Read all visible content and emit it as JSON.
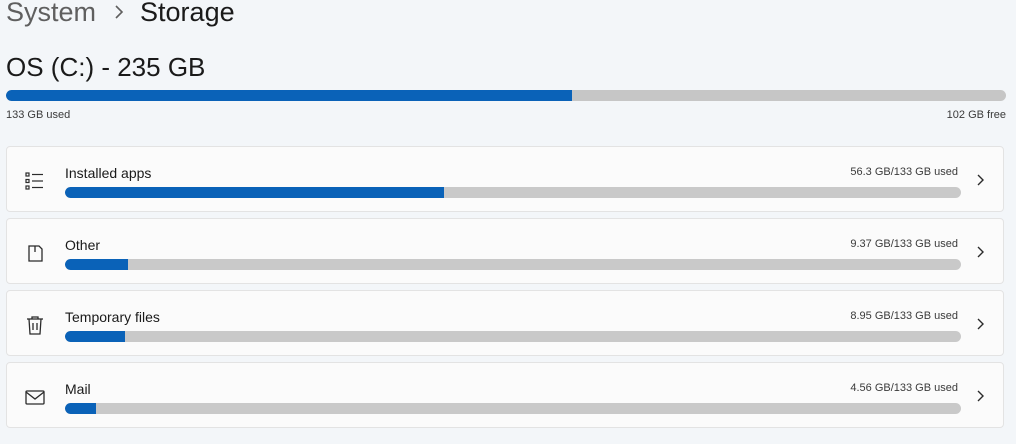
{
  "breadcrumb": {
    "parent": "System",
    "current": "Storage"
  },
  "drive": {
    "title": "OS (C:) - 235 GB",
    "used_label": "133 GB used",
    "free_label": "102 GB free",
    "used_fraction": 0.566
  },
  "categories": [
    {
      "label": "Installed apps",
      "size": "56.3 GB/133 GB used",
      "fraction": 0.423,
      "icon": "list-icon"
    },
    {
      "label": "Other",
      "size": "9.37 GB/133 GB used",
      "fraction": 0.0705,
      "icon": "document-icon"
    },
    {
      "label": "Temporary files",
      "size": "8.95 GB/133 GB used",
      "fraction": 0.0673,
      "icon": "trash-icon"
    },
    {
      "label": "Mail",
      "size": "4.56 GB/133 GB used",
      "fraction": 0.0343,
      "icon": "mail-icon"
    }
  ],
  "colors": {
    "accent": "#0a62b8",
    "track": "#c6c6c6",
    "background": "#f3f6f9"
  }
}
